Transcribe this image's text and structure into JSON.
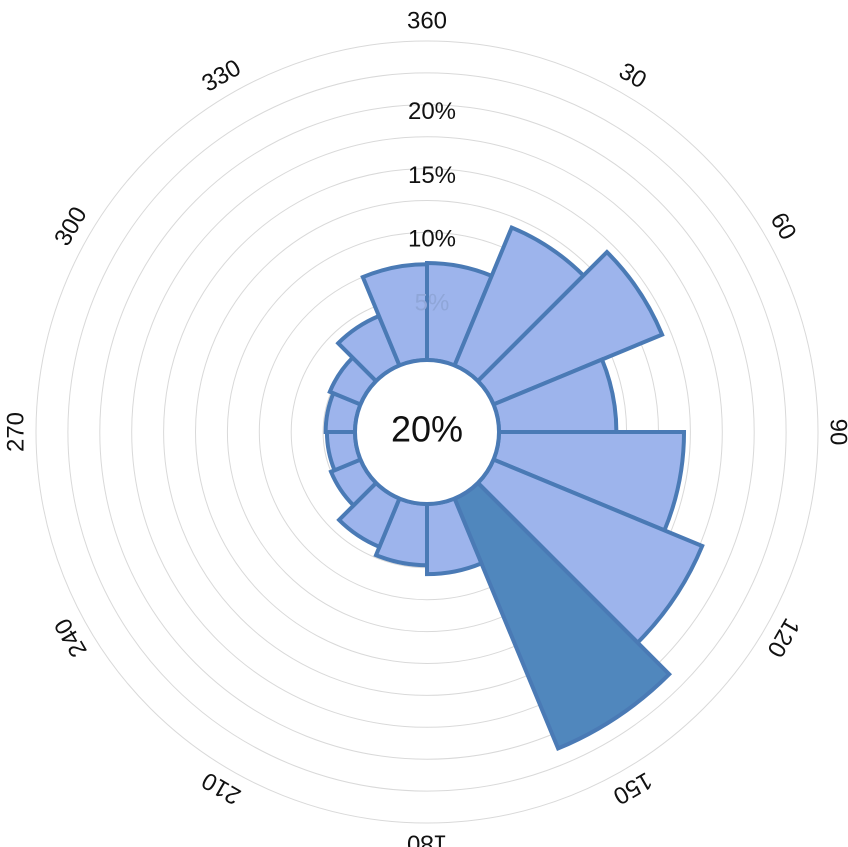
{
  "chart_data": {
    "type": "polar-bar",
    "center_label": "20%",
    "angle_ticks": [
      "360",
      "30",
      "60",
      "90",
      "120",
      "150",
      "180",
      "210",
      "240",
      "270",
      "300",
      "330"
    ],
    "radial_ticks": [
      "5%",
      "10%",
      "15%",
      "20%"
    ],
    "radial_max": 25,
    "sector_width_deg": 22.5,
    "sectors": [
      {
        "start": 0,
        "value": 7.6
      },
      {
        "start": 22.5,
        "value": 11.7
      },
      {
        "start": 45,
        "value": 14.3
      },
      {
        "start": 67.5,
        "value": 9.2
      },
      {
        "start": 90,
        "value": 14.5
      },
      {
        "start": 112.5,
        "value": 17.7
      },
      {
        "start": 135,
        "value": 21.2
      },
      {
        "start": 157.5,
        "value": 5.5
      },
      {
        "start": 180,
        "value": 4.8
      },
      {
        "start": 202.5,
        "value": 4.1
      },
      {
        "start": 225,
        "value": 2.5
      },
      {
        "start": 247.5,
        "value": 2.2
      },
      {
        "start": 270,
        "value": 2.3
      },
      {
        "start": 292.5,
        "value": 2.6
      },
      {
        "start": 315,
        "value": 4.2
      },
      {
        "start": 337.5,
        "value": 7.5
      }
    ],
    "highlight_sector_start": 135,
    "colors": {
      "fill": "#9db4ec",
      "stroke": "#4a7ab5",
      "highlight": "#5087bd",
      "grid": "#d9d9d9"
    },
    "grid": true
  }
}
